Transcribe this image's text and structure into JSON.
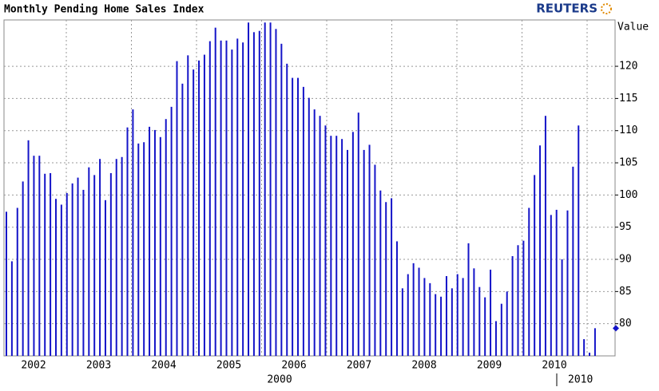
{
  "chart_data": {
    "type": "bar",
    "title": "Monthly Pending Home Sales Index",
    "brand": "REUTERS",
    "y_axis_label": "Value",
    "year_labels": [
      "2002",
      "2003",
      "2004",
      "2005",
      "2006",
      "2007",
      "2008",
      "2009",
      "2010"
    ],
    "footer_labels": [
      "2000",
      "2010"
    ],
    "values": [
      97.4,
      89.7,
      98.0,
      102.1,
      108.5,
      106.1,
      106.1,
      103.3,
      103.4,
      99.4,
      98.5,
      100.3,
      101.8,
      102.7,
      100.8,
      104.3,
      103.1,
      105.6,
      99.2,
      103.4,
      105.6,
      105.9,
      110.5,
      113.3,
      108.0,
      108.2,
      110.6,
      110.1,
      109.0,
      111.8,
      113.7,
      120.8,
      117.3,
      121.7,
      119.5,
      120.9,
      121.8,
      123.9,
      126.0,
      124.0,
      124.0,
      122.6,
      124.3,
      123.7,
      126.8,
      125.3,
      125.5,
      126.8,
      126.8,
      125.8,
      123.5,
      120.4,
      118.2,
      118.2,
      116.8,
      115.1,
      113.3,
      112.3,
      110.8,
      109.2,
      109.2,
      108.7,
      107.0,
      109.8,
      112.8,
      107.0,
      107.8,
      104.7,
      100.7,
      98.9,
      99.5,
      92.8,
      85.5,
      87.7,
      89.4,
      88.7,
      87.1,
      86.3,
      84.6,
      84.2,
      87.4,
      85.5,
      87.7,
      87.1,
      92.5,
      88.6,
      85.7,
      84.1,
      88.4,
      80.4,
      83.1,
      85.0,
      90.5,
      92.2,
      92.9,
      98.0,
      103.1,
      107.7,
      112.3,
      96.9,
      97.7,
      90.0,
      97.6,
      104.4,
      110.8,
      77.6,
      75.5,
      79.3
    ],
    "color": "#1414c8",
    "ylim": [
      75,
      127.2
    ],
    "yticks": [
      80,
      85,
      90,
      95,
      100,
      105,
      110,
      115,
      120
    ],
    "grid": true
  }
}
